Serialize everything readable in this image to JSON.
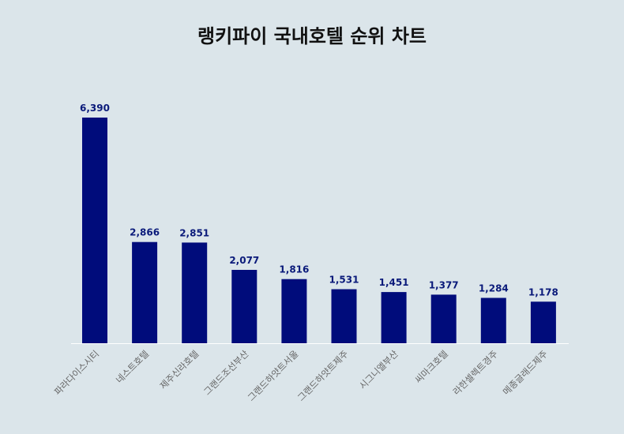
{
  "chart_data": {
    "type": "bar",
    "title": "랭키파이 국내호텔 순위 차트",
    "categories": [
      "파라다이스시티",
      "네스트호텔",
      "제주신라호텔",
      "그랜드조선부산",
      "그랜드하얏트서울",
      "그랜드하얏트제주",
      "시그니엘부산",
      "씨마크호텔",
      "라한셀렉트경주",
      "메종글래드제주"
    ],
    "values": [
      6390,
      2866,
      2851,
      2077,
      1816,
      1531,
      1451,
      1377,
      1284,
      1178
    ],
    "value_labels": [
      "6,390",
      "2,866",
      "2,851",
      "2,077",
      "1,816",
      "1,531",
      "1,451",
      "1,377",
      "1,284",
      "1,178"
    ],
    "xlabel": "",
    "ylabel": "",
    "ylim": [
      0,
      6390
    ],
    "grid": false,
    "bar_color": "#000c7b",
    "value_label_color": "#0a1a7a",
    "baseline_color": "#ffffff",
    "background_color": "#dbe5ea"
  }
}
